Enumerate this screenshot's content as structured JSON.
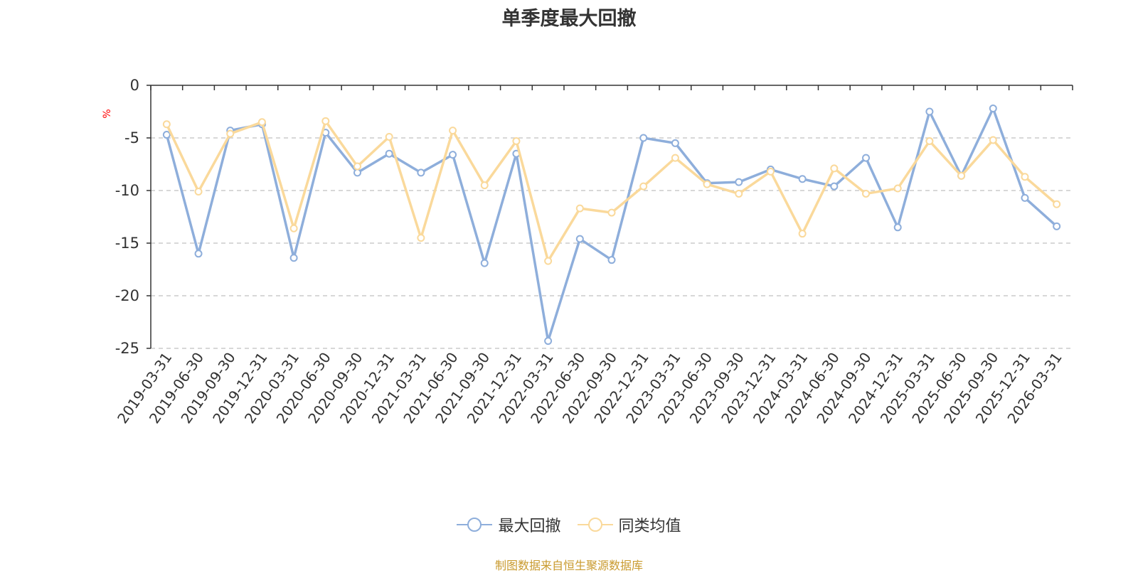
{
  "chart_data": {
    "type": "line",
    "title": "单季度最大回撤",
    "ylabel": "%",
    "ylim": [
      -25,
      0
    ],
    "yticks": [
      0,
      -5,
      -10,
      -15,
      -20,
      -25
    ],
    "grid": true,
    "legend_position": "bottom-center",
    "categories": [
      "2019-03-31",
      "2019-06-30",
      "2019-09-30",
      "2019-12-31",
      "2020-03-31",
      "2020-06-30",
      "2020-09-30",
      "2020-12-31",
      "2021-03-31",
      "2021-06-30",
      "2021-09-30",
      "2021-12-31",
      "2022-03-31",
      "2022-06-30",
      "2022-09-30",
      "2022-12-31",
      "2023-03-31",
      "2023-06-30",
      "2023-09-30",
      "2023-12-31",
      "2024-03-31",
      "2024-06-30",
      "2024-09-30",
      "2024-12-31",
      "2025-03-31",
      "2025-06-30",
      "2025-09-30",
      "2025-12-31",
      "2026-03-31"
    ],
    "series": [
      {
        "name": "最大回撤",
        "color": "#8eaedb",
        "values": [
          -4.7,
          -16.0,
          -4.3,
          -3.7,
          -16.4,
          -4.5,
          -8.3,
          -6.5,
          -8.3,
          -6.6,
          -16.9,
          -6.5,
          -24.3,
          -14.6,
          -16.6,
          -5.0,
          -5.5,
          -9.3,
          -9.2,
          -8.0,
          -8.9,
          -9.6,
          -6.9,
          -13.5,
          -2.5,
          -8.6,
          -2.2,
          -10.7,
          -13.4
        ]
      },
      {
        "name": "同类均值",
        "color": "#fad99b",
        "values": [
          -3.7,
          -10.1,
          -4.6,
          -3.5,
          -13.6,
          -3.4,
          -7.7,
          -4.9,
          -14.5,
          -4.3,
          -9.5,
          -5.3,
          -16.7,
          -11.7,
          -12.1,
          -9.6,
          -6.9,
          -9.4,
          -10.3,
          -8.2,
          -14.1,
          -7.9,
          -10.3,
          -9.8,
          -5.3,
          -8.6,
          -5.2,
          -8.7,
          -11.3
        ]
      }
    ]
  },
  "source": {
    "text": "制图数据来自恒生聚源数据库",
    "color": "#c99a2e"
  },
  "axis_label_color": "#ff0000"
}
